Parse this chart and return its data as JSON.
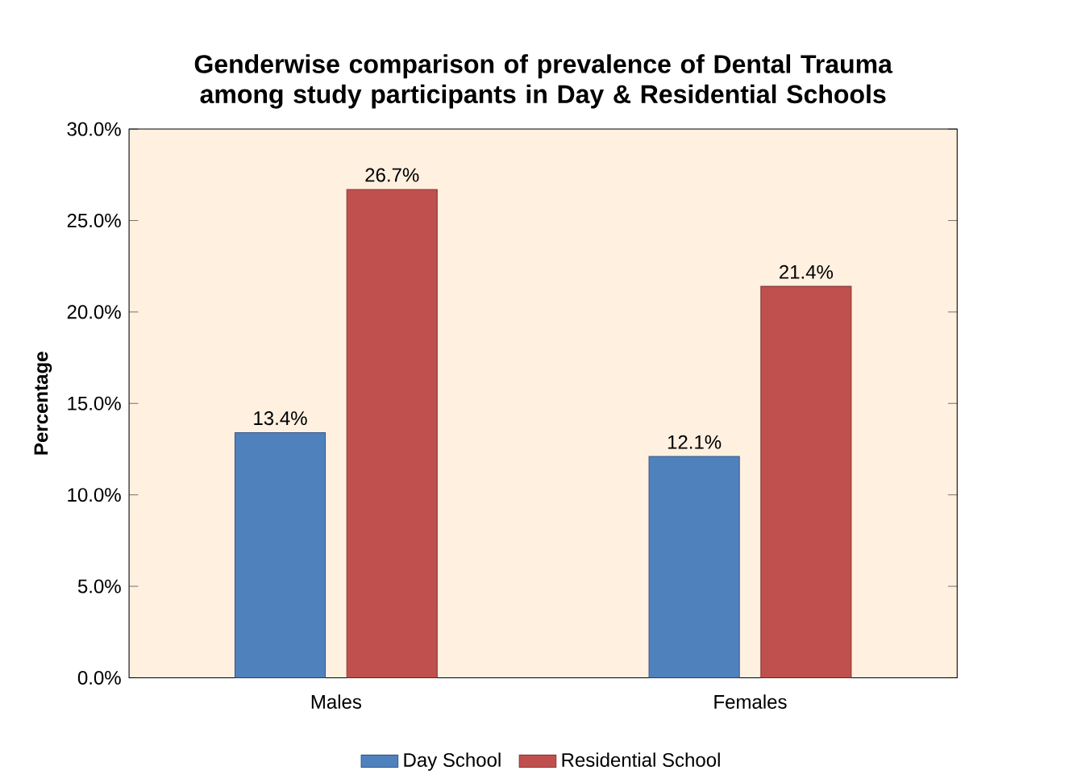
{
  "chart_data": {
    "type": "bar",
    "title": "Genderwise comparison of prevalence of Dental Trauma among study participants in Day & Residential Schools",
    "ylabel": "Percentage",
    "categories": [
      "Males",
      "Females"
    ],
    "series": [
      {
        "name": "Day School",
        "color": "#4f81bd",
        "values": [
          13.4,
          12.1
        ],
        "value_labels": [
          "13.4%",
          "12.1%"
        ]
      },
      {
        "name": "Residential School",
        "color": "#c0504d",
        "values": [
          26.7,
          21.4
        ],
        "value_labels": [
          "26.7%",
          "21.4%"
        ]
      }
    ],
    "ylim": [
      0,
      30
    ],
    "yticks": [
      {
        "value": 0,
        "label": "0.0%"
      },
      {
        "value": 5,
        "label": "5.0%"
      },
      {
        "value": 10,
        "label": "10.0%"
      },
      {
        "value": 15,
        "label": "15.0%"
      },
      {
        "value": 20,
        "label": "20.0%"
      },
      {
        "value": 25,
        "label": "25.0%"
      },
      {
        "value": 30,
        "label": "30.0%"
      }
    ],
    "grid": false,
    "legend": "bottom"
  }
}
